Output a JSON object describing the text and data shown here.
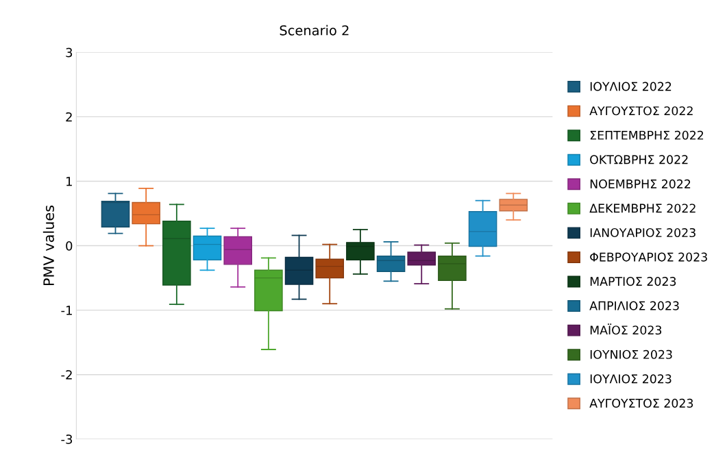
{
  "chart_data": {
    "type": "box",
    "title": "Scenario 2",
    "ylabel": "PMV values",
    "categories": [
      null
    ],
    "ylim": [
      -3,
      3
    ],
    "yticks": [
      -3,
      -2,
      -1,
      0,
      1,
      2,
      3
    ],
    "grid": "y",
    "legend": "right",
    "tick_labels": "y",
    "series": [
      {
        "name": "ΙΟΥΛΙΟΣ 2022",
        "color": "#1a5e80",
        "boxes": [
          {
            "low": 0.19,
            "q1": 0.29,
            "median": 0.67,
            "q3": 0.69,
            "high": 0.81
          }
        ]
      },
      {
        "name": "ΑΥΓΟΥΣΤΟΣ 2022",
        "color": "#e9722f",
        "boxes": [
          {
            "low": 0.0,
            "q1": 0.34,
            "median": 0.48,
            "q3": 0.67,
            "high": 0.89
          }
        ]
      },
      {
        "name": "ΣΕΠΤΕΜΒΡΗΣ 2022",
        "color": "#1b6b2a",
        "boxes": [
          {
            "low": -0.91,
            "q1": -0.61,
            "median": 0.11,
            "q3": 0.38,
            "high": 0.64
          }
        ]
      },
      {
        "name": "ΟΚΤΩΒΡΗΣ 2022",
        "color": "#16a0d8",
        "boxes": [
          {
            "low": -0.38,
            "q1": -0.22,
            "median": 0.02,
            "q3": 0.15,
            "high": 0.27
          }
        ]
      },
      {
        "name": "ΝΟΕΜΒΡΗΣ 2022",
        "color": "#a3309a",
        "boxes": [
          {
            "low": -0.64,
            "q1": -0.29,
            "median": -0.06,
            "q3": 0.14,
            "high": 0.27
          }
        ]
      },
      {
        "name": "ΔΕΚΕΜΒΡΗΣ 2022",
        "color": "#4ea72e",
        "boxes": [
          {
            "low": -1.61,
            "q1": -1.01,
            "median": -0.5,
            "q3": -0.38,
            "high": -0.19
          }
        ]
      },
      {
        "name": "ΙΑΝΟΥΑΡΙΟΣ 2023",
        "color": "#0e3a52",
        "boxes": [
          {
            "low": -0.83,
            "q1": -0.6,
            "median": -0.38,
            "q3": -0.18,
            "high": 0.16
          }
        ]
      },
      {
        "name": "ΦΕΒΡΟΥΑΡΙΟΣ 2023",
        "color": "#a2440f",
        "boxes": [
          {
            "low": -0.9,
            "q1": -0.5,
            "median": -0.32,
            "q3": -0.21,
            "high": 0.02
          }
        ]
      },
      {
        "name": "ΜΑΡΤΙΟΣ 2023",
        "color": "#0f3f1a",
        "boxes": [
          {
            "low": -0.44,
            "q1": -0.22,
            "median": -0.01,
            "q3": 0.05,
            "high": 0.25
          }
        ]
      },
      {
        "name": "ΑΠΡΙΛΙΟΣ 2023",
        "color": "#176c92",
        "boxes": [
          {
            "low": -0.55,
            "q1": -0.4,
            "median": -0.23,
            "q3": -0.16,
            "high": 0.06
          }
        ]
      },
      {
        "name": "ΜΑΪΟΣ 2023",
        "color": "#5f1b5c",
        "boxes": [
          {
            "low": -0.59,
            "q1": -0.3,
            "median": -0.23,
            "q3": -0.1,
            "high": 0.01
          }
        ]
      },
      {
        "name": "ΙΟΥΝΙΟΣ 2023",
        "color": "#356b1f",
        "boxes": [
          {
            "low": -0.98,
            "q1": -0.54,
            "median": -0.28,
            "q3": -0.16,
            "high": 0.04
          }
        ]
      },
      {
        "name": "ΙΟΥΛΙΟΣ 2023",
        "color": "#2090c8",
        "boxes": [
          {
            "low": -0.16,
            "q1": -0.01,
            "median": 0.22,
            "q3": 0.53,
            "high": 0.7
          }
        ]
      },
      {
        "name": "ΑΥΓΟΥΣΤΟΣ 2023",
        "color": "#f08c5a",
        "boxes": [
          {
            "low": 0.4,
            "q1": 0.54,
            "median": 0.63,
            "q3": 0.72,
            "high": 0.81
          }
        ]
      }
    ]
  }
}
